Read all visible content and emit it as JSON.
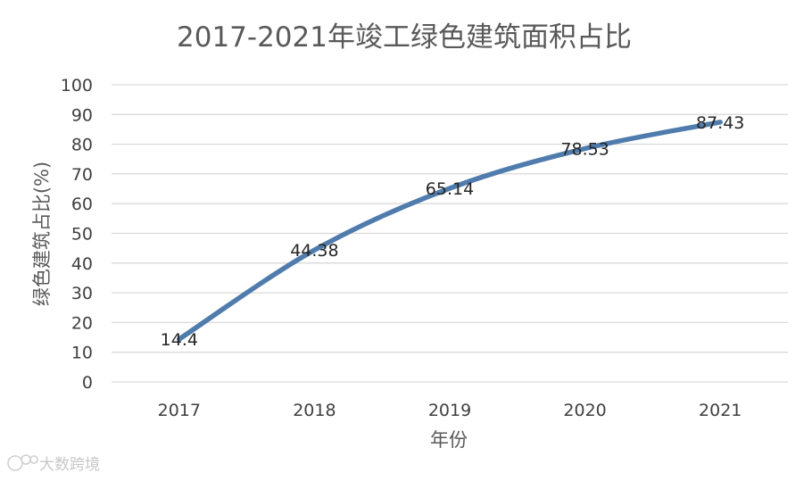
{
  "chart_data": {
    "type": "line",
    "title": "2017-2021年竣工绿色建筑面积占比",
    "xlabel": "年份",
    "ylabel": "绿色建筑占比(%)",
    "categories": [
      "2017",
      "2018",
      "2019",
      "2020",
      "2021"
    ],
    "series": [
      {
        "values": [
          14.4,
          44.38,
          65.14,
          78.53,
          87.43
        ]
      }
    ],
    "data_labels": [
      "14.4",
      "44.38",
      "65.14",
      "78.53",
      "87.43"
    ],
    "ylim": [
      0,
      100
    ],
    "yticks": [
      "0",
      "10",
      "20",
      "30",
      "40",
      "50",
      "60",
      "70",
      "80",
      "90",
      "100"
    ],
    "grid": true,
    "legend": "none",
    "line_color": "#4f7cac"
  },
  "watermark": {
    "text": "大数跨境"
  }
}
